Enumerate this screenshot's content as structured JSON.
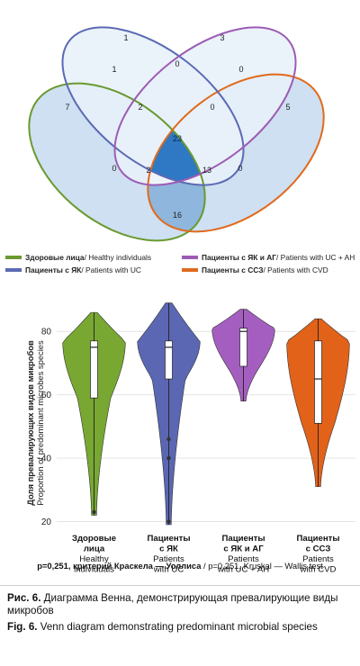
{
  "venn": {
    "regions": {
      "healthy_only": "7",
      "uc_only": "1",
      "ucah_only": "3",
      "cvd_only": "5",
      "h_uc": "1",
      "uc_ucah": "0",
      "ucah_cvd": "0",
      "h_cvd": "0",
      "h_uc_ucah": "2",
      "uc_ucah_cvd": "0",
      "h_uc_cvd": "2",
      "h_ucah_cvd": "0",
      "all_four": "23",
      "h_ucah_cvd_lower": "13",
      "h_cvd_bottom": "16",
      "uc_cvd_left": "0"
    },
    "legend": [
      {
        "ru": "Здоровые лица",
        "en": " / Healthy individuals",
        "color": "#6a9a30"
      },
      {
        "ru": "Пациенты с ЯК и АГ",
        "en": " / Patients with UC + AH",
        "color": "#9c5cb4"
      },
      {
        "ru": "Пациенты с ЯК",
        "en": " / Patients with UC",
        "color": "#5b6ab4"
      },
      {
        "ru": "Пациенты с ССЗ",
        "en": " / Patients with CVD",
        "color": "#e06a1c"
      }
    ]
  },
  "chart_data": {
    "type": "violin",
    "ylabel_ru": "Доля превалирующих видов микробов",
    "ylabel_en": "Proportion of predominant microbes species",
    "ylim": [
      19,
      92
    ],
    "yticks": [
      "20",
      "40",
      "60",
      "80"
    ],
    "groups": [
      {
        "label_ru": [
          "Здоровые",
          "лица"
        ],
        "label_en": [
          "Healthy",
          "individuals"
        ],
        "color": "#78a832",
        "min": 22,
        "q1": 59,
        "median": 75,
        "q3": 77,
        "max": 86,
        "points": [
          23
        ]
      },
      {
        "label_ru": [
          "Пациенты",
          "с ЯК"
        ],
        "label_en": [
          "Patients",
          "with UC"
        ],
        "color": "#5b67b3",
        "min": 19,
        "q1": 65,
        "median": 75,
        "q3": 77,
        "max": 89,
        "points": [
          20,
          40,
          46
        ]
      },
      {
        "label_ru": [
          "Пациенты",
          "с ЯК и АГ"
        ],
        "label_en": [
          "Patients",
          "with UC + AH"
        ],
        "color": "#a45ec0",
        "min": 58,
        "q1": 69,
        "median": 80,
        "q3": 81,
        "max": 87,
        "points": []
      },
      {
        "label_ru": [
          "Пациенты",
          "с ССЗ"
        ],
        "label_en": [
          "Patients",
          "with CVD"
        ],
        "color": "#e2621a",
        "min": 31,
        "q1": 51,
        "median": 65,
        "q3": 77,
        "max": 84,
        "points": []
      }
    ],
    "stat_note_ru": "p=0,251, критерий Краскела — Уоллиса",
    "stat_note_en": " / p=0,251, Kruskal — Wallis test"
  },
  "caption": {
    "ru_label": "Рис. 6.",
    "ru_text": " Диаграмма Венна, демонстрирующая превалиру­ющие виды микробов",
    "en_label": "Fig. 6.",
    "en_text": " Venn diagram demonstrating predominant microbial species"
  }
}
